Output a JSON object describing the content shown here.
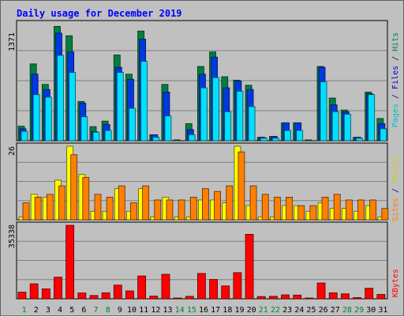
{
  "chart_data": {
    "type": "bar",
    "title": "Daily usage for December 2019",
    "days": [
      "1",
      "2",
      "3",
      "4",
      "5",
      "6",
      "7",
      "8",
      "9",
      "10",
      "11",
      "12",
      "13",
      "14",
      "15",
      "16",
      "17",
      "18",
      "19",
      "20",
      "21",
      "22",
      "23",
      "24",
      "25",
      "26",
      "27",
      "28",
      "29",
      "30",
      "31"
    ],
    "weekend_days": [
      "1",
      "7",
      "8",
      "14",
      "15",
      "21",
      "22",
      "28",
      "29"
    ],
    "panels": [
      {
        "name": "top",
        "max_label": "1371",
        "ymax": 1371,
        "series": [
          {
            "name": "Hits",
            "color": "#008040",
            "values": [
              170,
              900,
              660,
              1340,
              1230,
              460,
              165,
              230,
              1005,
              780,
              1285,
              70,
              660,
              10,
              200,
              870,
              1040,
              750,
              710,
              650,
              40,
              50,
              210,
              210,
              10,
              870,
              500,
              360,
              40,
              570,
              260
            ]
          },
          {
            "name": "Files",
            "color": "#0038e0",
            "values": [
              140,
              780,
              600,
              1260,
              1040,
              440,
              105,
              190,
              860,
              720,
              1190,
              70,
              570,
              0,
              130,
              780,
              980,
              620,
              700,
              600,
              40,
              50,
              210,
              210,
              0,
              860,
              420,
              340,
              40,
              550,
              200
            ]
          },
          {
            "name": "Pages",
            "color": "#00e0ff",
            "values": [
              110,
              540,
              510,
              1000,
              800,
              280,
              100,
              120,
              800,
              380,
              930,
              40,
              290,
              0,
              70,
              620,
              740,
              340,
              580,
              400,
              30,
              30,
              120,
              120,
              0,
              690,
              340,
              310,
              30,
              540,
              140
            ]
          }
        ]
      },
      {
        "name": "middle",
        "max_label": "26",
        "ymax": 26,
        "series": [
          {
            "name": "Visits",
            "color": "#ffff00",
            "values": [
              1,
              9,
              8,
              14,
              26,
              16,
              3,
              3,
              11,
              3,
              11,
              1,
              8,
              1,
              1,
              7,
              7,
              6,
              26,
              5,
              1,
              1,
              5,
              5,
              3,
              6,
              4,
              4,
              3,
              5,
              1
            ]
          },
          {
            "name": "Sites",
            "color": "#ff8000",
            "values": [
              6,
              8,
              9,
              12,
              23,
              15,
              9,
              8,
              12,
              6,
              12,
              7,
              7,
              7,
              8,
              11,
              10,
              12,
              24,
              12,
              9,
              8,
              8,
              5,
              5,
              8,
              9,
              7,
              7,
              7,
              4
            ]
          }
        ]
      },
      {
        "name": "bottom",
        "max_label": "35338",
        "ymax": 35338,
        "series": [
          {
            "name": "KBytes",
            "color": "#ff0000",
            "values": [
              3200,
              7200,
              4800,
              10400,
              35338,
              2800,
              1600,
              2900,
              6600,
              3800,
              11000,
              1300,
              11800,
              400,
              1200,
              12200,
              9300,
              6200,
              12600,
              31000,
              1100,
              1200,
              1900,
              1800,
              400,
              7600,
              2900,
              2400,
              600,
              5100,
              2100
            ]
          }
        ]
      }
    ],
    "right_legends": [
      {
        "segments": [
          {
            "text": "Pages",
            "color": "#00c0c0"
          },
          {
            "text": " / ",
            "color": "#000080"
          },
          {
            "text": "Files",
            "color": "#0000c0"
          },
          {
            "text": " / ",
            "color": "#000080"
          },
          {
            "text": "Hits",
            "color": "#008040"
          }
        ]
      },
      {
        "segments": [
          {
            "text": "Sites",
            "color": "#ff8000"
          },
          {
            "text": " / ",
            "color": "#000080"
          },
          {
            "text": "Visits",
            "color": "#d0d000"
          }
        ]
      },
      {
        "segments": [
          {
            "text": "KBytes",
            "color": "#ff0000"
          }
        ]
      }
    ]
  }
}
